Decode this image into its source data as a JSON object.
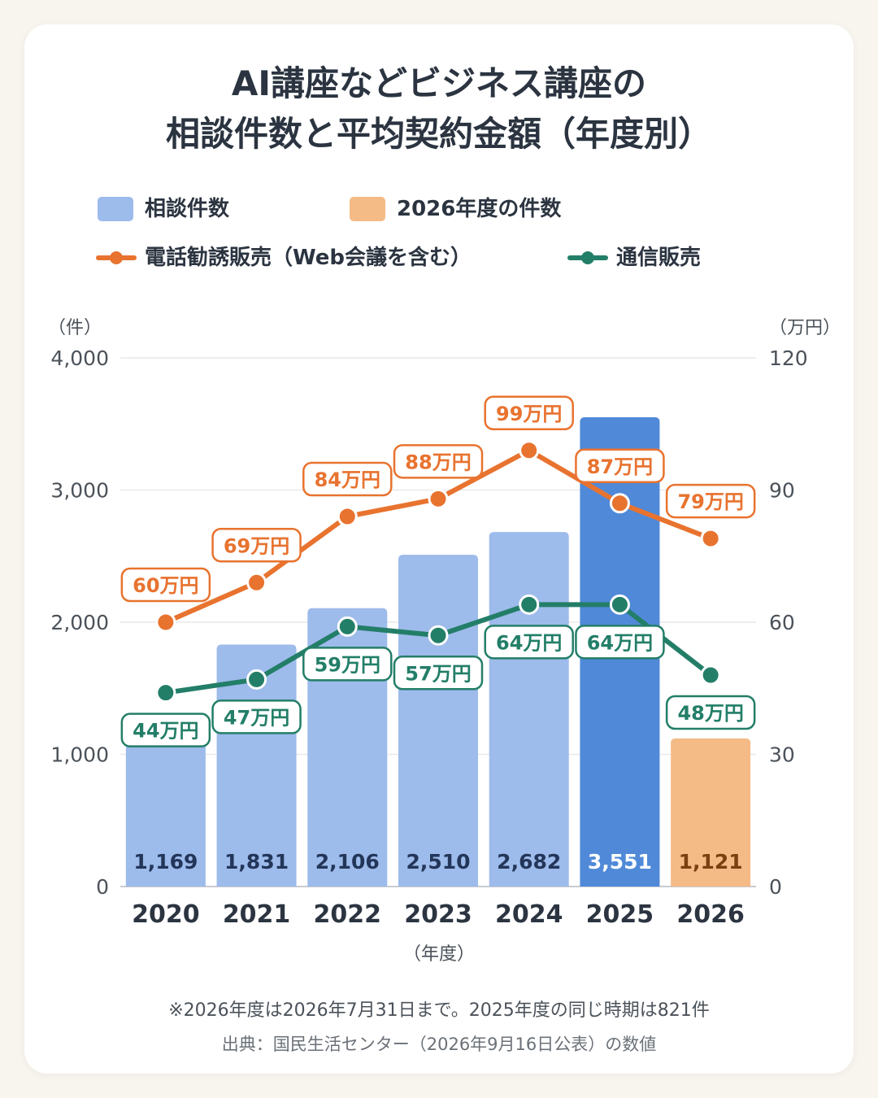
{
  "title_line1": "AI講座などビジネス講座の",
  "title_line2": "相談件数と平均契約金額（年度別）",
  "legend": {
    "bar_count": "相談件数",
    "bar_2026": "2026年度の件数",
    "line_phone": "電話勧誘販売（Web会議を含む）",
    "line_mail": "通信販売"
  },
  "colors": {
    "bar": "#9dbbeb",
    "bar_highlight": "#5089d8",
    "bar_2026": "#f4bb87",
    "phone": "#e8732f",
    "mail": "#237e68",
    "bar_label_dark": "#233659",
    "bar_label_2026": "#7a4010"
  },
  "chart_data": {
    "type": "bar",
    "categories": [
      "2020",
      "2021",
      "2022",
      "2023",
      "2024",
      "2025",
      "2026"
    ],
    "ylabel_left": "（件）",
    "ylabel_right": "（万円）",
    "xlabel": "（年度）",
    "ylim_left": [
      0,
      4000
    ],
    "ylim_right": [
      0,
      120
    ],
    "left_ticks": [
      "0",
      "1,000",
      "2,000",
      "3,000",
      "4,000"
    ],
    "right_ticks": [
      "0",
      "30",
      "60",
      "90",
      "120"
    ],
    "grid": true,
    "bars": {
      "name": "相談件数",
      "values": [
        1169,
        1831,
        2106,
        2510,
        2682,
        3551,
        1121
      ],
      "labels": [
        "1,169",
        "1,831",
        "2,106",
        "2,510",
        "2,682",
        "3,551",
        "1,121"
      ]
    },
    "series": [
      {
        "name": "電話勧誘販売（Web会議を含む）",
        "values": [
          60,
          69,
          84,
          88,
          99,
          87,
          79
        ],
        "labels": [
          "60万円",
          "69万円",
          "84万円",
          "88万円",
          "99万円",
          "87万円",
          "79万円"
        ]
      },
      {
        "name": "通信販売",
        "values": [
          44,
          47,
          59,
          57,
          64,
          64,
          48
        ],
        "labels": [
          "44万円",
          "47万円",
          "59万円",
          "57万円",
          "64万円",
          "64万円",
          "48万円"
        ]
      }
    ]
  },
  "footnote": "※2026年度は2026年7月31日まで。2025年度の同じ時期は821件",
  "source": "出典：国民生活センター（2026年9月16日公表）の数値"
}
